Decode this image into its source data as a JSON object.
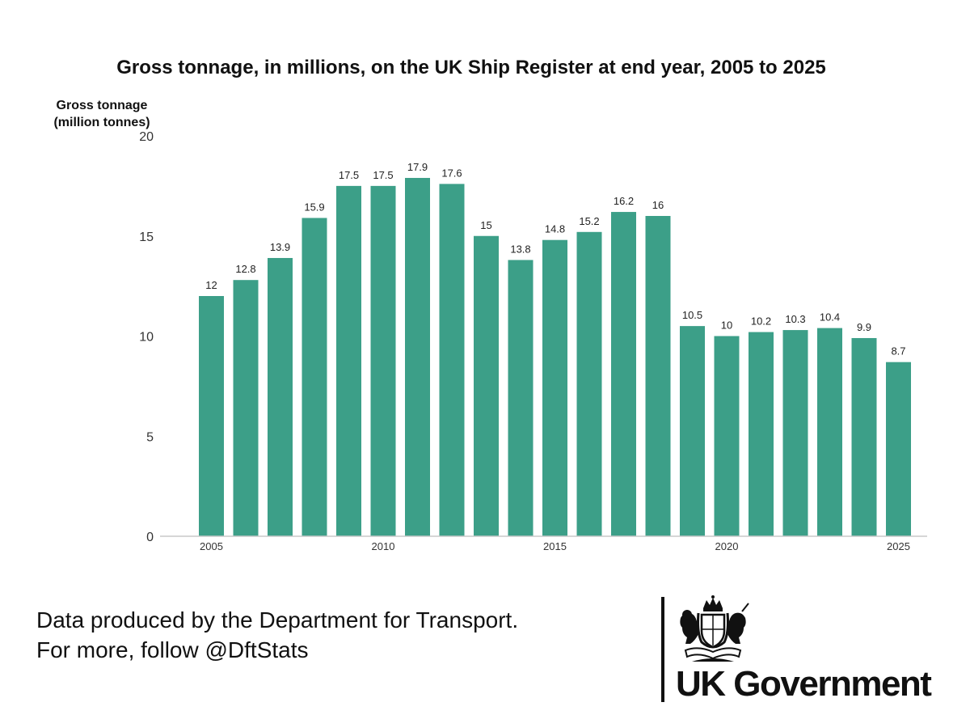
{
  "chart_data": {
    "type": "bar",
    "title": "Gross tonnage, in millions, on the UK Ship Register at end year, 2005 to 2025",
    "ylabel": [
      "Gross tonnage",
      "(million tonnes)"
    ],
    "xlabel": "",
    "ylim": [
      0,
      20
    ],
    "y_ticks": [
      "0",
      "5",
      "10",
      "15",
      "20"
    ],
    "x_tick_labels": [
      "2005",
      "2010",
      "2015",
      "2020",
      "2025"
    ],
    "categories": [
      "2005",
      "2006",
      "2007",
      "2008",
      "2009",
      "2010",
      "2011",
      "2012",
      "2013",
      "2014",
      "2015",
      "2016",
      "2017",
      "2018",
      "2019",
      "2020",
      "2021",
      "2022",
      "2023",
      "2024",
      "2025"
    ],
    "values": [
      12,
      12.8,
      13.9,
      15.9,
      17.5,
      17.5,
      17.9,
      17.6,
      15,
      13.8,
      14.8,
      15.2,
      16.2,
      16,
      10.5,
      10,
      10.2,
      10.3,
      10.4,
      9.9,
      8.7
    ],
    "data_labels": [
      "12",
      "12.8",
      "13.9",
      "15.9",
      "17.5",
      "17.5",
      "17.9",
      "17.6",
      "15",
      "13.8",
      "14.8",
      "15.2",
      "16.2",
      "16",
      "10.5",
      "10",
      "10.2",
      "10.3",
      "10.4",
      "9.9",
      "8.7"
    ],
    "grid": false,
    "legend": "none",
    "bar_color": "#3c9f88"
  },
  "footer": {
    "line1": "Data produced by the Department for Transport.",
    "line2": "For more, follow @DftStats"
  },
  "branding": {
    "crest_icon": "royal-coat-of-arms-icon",
    "name": "UK Government"
  }
}
